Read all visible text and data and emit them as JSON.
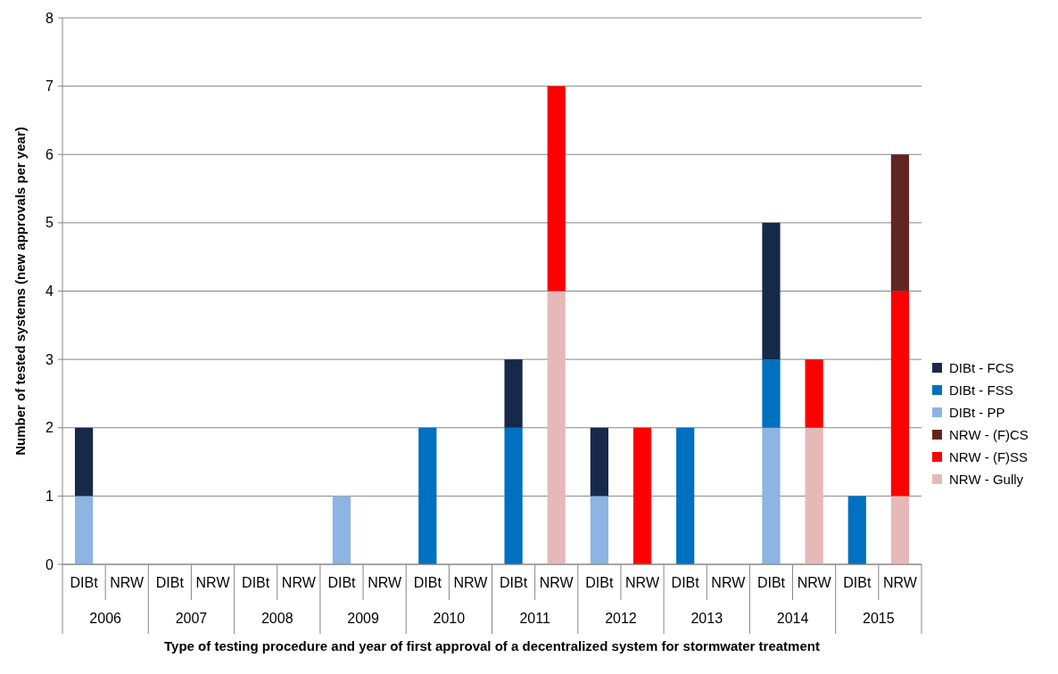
{
  "chart_data": {
    "type": "bar",
    "stacked": true,
    "xlabel": "Type of testing procedure and year of first approval  of a decentralized system for stormwater treatment",
    "ylabel": "Number of tested systems (new approvals per year)",
    "categories": [
      "DIBt",
      "NRW",
      "DIBt",
      "NRW",
      "DIBt",
      "NRW",
      "DIBt",
      "NRW",
      "DIBt",
      "NRW",
      "DIBt",
      "NRW",
      "DIBt",
      "NRW",
      "DIBt",
      "NRW",
      "DIBt",
      "NRW",
      "DIBt",
      "NRW"
    ],
    "annotations": [
      "2006",
      "2007",
      "2008",
      "2009",
      "2010",
      "2011",
      "2012",
      "2013",
      "2014",
      "2015"
    ],
    "series": [
      {
        "name": "NRW - Gully",
        "color": "#e6b9b8",
        "values": [
          0,
          0,
          0,
          0,
          0,
          0,
          0,
          0,
          0,
          0,
          0,
          4,
          0,
          0,
          0,
          0,
          0,
          2,
          0,
          1
        ]
      },
      {
        "name": "NRW - (F)SS",
        "color": "#ff0000",
        "values": [
          0,
          0,
          0,
          0,
          0,
          0,
          0,
          0,
          0,
          0,
          0,
          3,
          0,
          2,
          0,
          0,
          0,
          1,
          0,
          3
        ]
      },
      {
        "name": "NRW - (F)CS",
        "color": "#632523",
        "values": [
          0,
          0,
          0,
          0,
          0,
          0,
          0,
          0,
          0,
          0,
          0,
          0,
          0,
          0,
          0,
          0,
          0,
          0,
          0,
          2
        ]
      },
      {
        "name": "DIBt - PP",
        "color": "#8db4e2",
        "values": [
          1,
          0,
          0,
          0,
          0,
          0,
          1,
          0,
          0,
          0,
          0,
          0,
          1,
          0,
          0,
          0,
          2,
          0,
          0,
          0
        ]
      },
      {
        "name": "DIBt - FSS",
        "color": "#0070c0",
        "values": [
          0,
          0,
          0,
          0,
          0,
          0,
          0,
          0,
          2,
          0,
          2,
          0,
          0,
          0,
          2,
          0,
          1,
          0,
          1,
          0
        ]
      },
      {
        "name": "DIBt - FCS",
        "color": "#17294a",
        "values": [
          1,
          0,
          0,
          0,
          0,
          0,
          0,
          0,
          0,
          0,
          1,
          0,
          1,
          0,
          0,
          0,
          2,
          0,
          0,
          0
        ]
      }
    ],
    "ylim": [
      0,
      8
    ],
    "yticks": [
      0,
      1,
      2,
      3,
      4,
      5,
      6,
      7,
      8
    ],
    "grid": "y",
    "legend": "right"
  }
}
